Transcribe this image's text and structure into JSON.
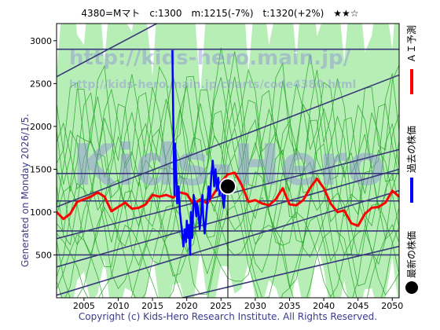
{
  "header": {
    "title": "4380=Mマト　c:1300　m:1215(-7%)　t:1320(+2%)　★★☆"
  },
  "side_note": "Generated on Monday 2026/1/5.",
  "footer": "Copyright (c) Kids-Hero Research Institute. All Rights Reserved.",
  "watermarks": {
    "line1": "http://kids-hero.main.jp/",
    "line2": "http://kids-hero.main.jp/charts/code4380.html",
    "line3": "Kids-Hero"
  },
  "legend": {
    "ai": "ＡＩ予測",
    "past": "過去の株価",
    "latest": "最新の株価"
  },
  "colors": {
    "ai": "#ff0000",
    "past": "#0000ff",
    "latest": "#000000",
    "band_fill": "#9ee89e",
    "band_line": "#1a9e1a",
    "trend": "#3a3a7a",
    "yellow": "#f7f3a6"
  },
  "chart_data": {
    "type": "line",
    "xlim": [
      2001,
      2051
    ],
    "ylim": [
      0,
      3200
    ],
    "xticks": [
      2005,
      2010,
      2015,
      2020,
      2025,
      2030,
      2035,
      2040,
      2045,
      2050
    ],
    "yticks": [
      500,
      1000,
      1500,
      2000,
      2500,
      3000
    ],
    "latest_point": {
      "x": 2026.0,
      "y": 1300
    },
    "horizontal_lines": [
      2900,
      1450,
      1130,
      780,
      500
    ],
    "trend_lines": [
      {
        "x": [
          2001,
          2051
        ],
        "y": [
          2580,
          4700
        ]
      },
      {
        "x": [
          2001,
          2051
        ],
        "y": [
          690,
          1730
        ]
      },
      {
        "x": [
          2001,
          2051
        ],
        "y": [
          1060,
          2600
        ]
      },
      {
        "x": [
          2001,
          2051
        ],
        "y": [
          360,
          1500
        ]
      },
      {
        "x": [
          2001,
          2051
        ],
        "y": [
          30,
          1250
        ]
      },
      {
        "x": [
          2001,
          2051
        ],
        "y": [
          -350,
          600
        ]
      }
    ],
    "series": [
      {
        "name": "ＡＩ予測",
        "x": [
          2001,
          2002,
          2003,
          2004,
          2005,
          2006,
          2007,
          2008,
          2009,
          2010,
          2011,
          2012,
          2013,
          2014,
          2015,
          2016,
          2017,
          2018,
          2019,
          2020,
          2021,
          2022,
          2023,
          2024,
          2025,
          2026,
          2027,
          2028,
          2029,
          2030,
          2031,
          2032,
          2033,
          2034,
          2035,
          2036,
          2037,
          2038,
          2039,
          2040,
          2041,
          2042,
          2043,
          2044,
          2045,
          2046,
          2047,
          2048,
          2049,
          2050,
          2051
        ],
        "y": [
          1000,
          920,
          980,
          1120,
          1150,
          1180,
          1230,
          1180,
          1010,
          1060,
          1110,
          1040,
          1050,
          1090,
          1200,
          1180,
          1200,
          1170,
          1230,
          1210,
          1090,
          1150,
          1100,
          1220,
          1350,
          1440,
          1460,
          1320,
          1120,
          1140,
          1100,
          1080,
          1150,
          1280,
          1090,
          1080,
          1140,
          1280,
          1390,
          1280,
          1100,
          1000,
          1020,
          870,
          840,
          980,
          1050,
          1060,
          1110,
          1250,
          1180
        ]
      },
      {
        "name": "過去の株価",
        "x": [
          2017.9,
          2018.0,
          2018.1,
          2018.2,
          2018.3,
          2018.5,
          2018.6,
          2018.8,
          2019.0,
          2019.2,
          2019.4,
          2019.5,
          2019.7,
          2019.9,
          2020.0,
          2020.2,
          2020.3,
          2020.5,
          2020.6,
          2020.8,
          2021.0,
          2021.2,
          2021.4,
          2021.5,
          2021.7,
          2021.9,
          2022.1,
          2022.3,
          2022.4,
          2022.6,
          2022.8,
          2023.0,
          2023.2,
          2023.4,
          2023.6,
          2023.8,
          2024.0,
          2024.2,
          2024.4,
          2024.6,
          2024.8,
          2025.0,
          2025.2,
          2025.4,
          2025.6,
          2025.8,
          2026.0
        ],
        "y": [
          2890,
          2300,
          1700,
          1200,
          1800,
          1400,
          1100,
          1300,
          1000,
          850,
          700,
          600,
          800,
          650,
          900,
          700,
          850,
          500,
          1000,
          700,
          1200,
          1100,
          950,
          1100,
          1000,
          800,
          1000,
          1200,
          950,
          750,
          900,
          1100,
          1300,
          1150,
          1450,
          1600,
          1300,
          1500,
          1250,
          1400,
          1200,
          1350,
          1200,
          1050,
          1250,
          1350,
          1300
        ]
      }
    ]
  }
}
